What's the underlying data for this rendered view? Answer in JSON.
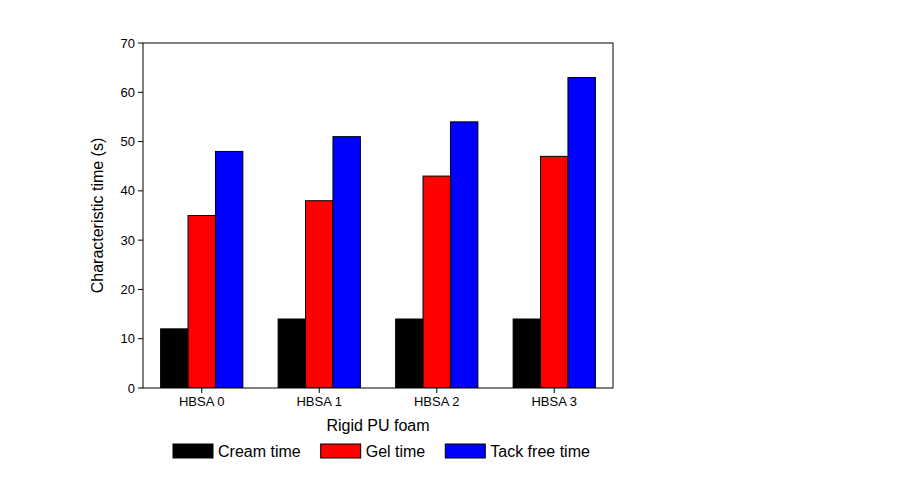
{
  "chart_data": {
    "type": "bar",
    "x_label": "Rigid PU foam",
    "y_label": "Characteristic time (s)",
    "categories": [
      "HBSA 0",
      "HBSA 1",
      "HBSA 2",
      "HBSA 3"
    ],
    "series": [
      {
        "name": "Cream time",
        "color": "#000000",
        "values": [
          12,
          14,
          14,
          14
        ]
      },
      {
        "name": "Gel time",
        "color": "#ff0000",
        "values": [
          35,
          38,
          43,
          47
        ]
      },
      {
        "name": "Tack free time",
        "color": "#0000ff",
        "values": [
          48,
          51,
          54,
          63
        ]
      }
    ],
    "ylim": [
      0,
      70
    ],
    "yticks": [
      0,
      10,
      20,
      30,
      40,
      50,
      60,
      70
    ],
    "grid": false,
    "legend": "bottom"
  }
}
